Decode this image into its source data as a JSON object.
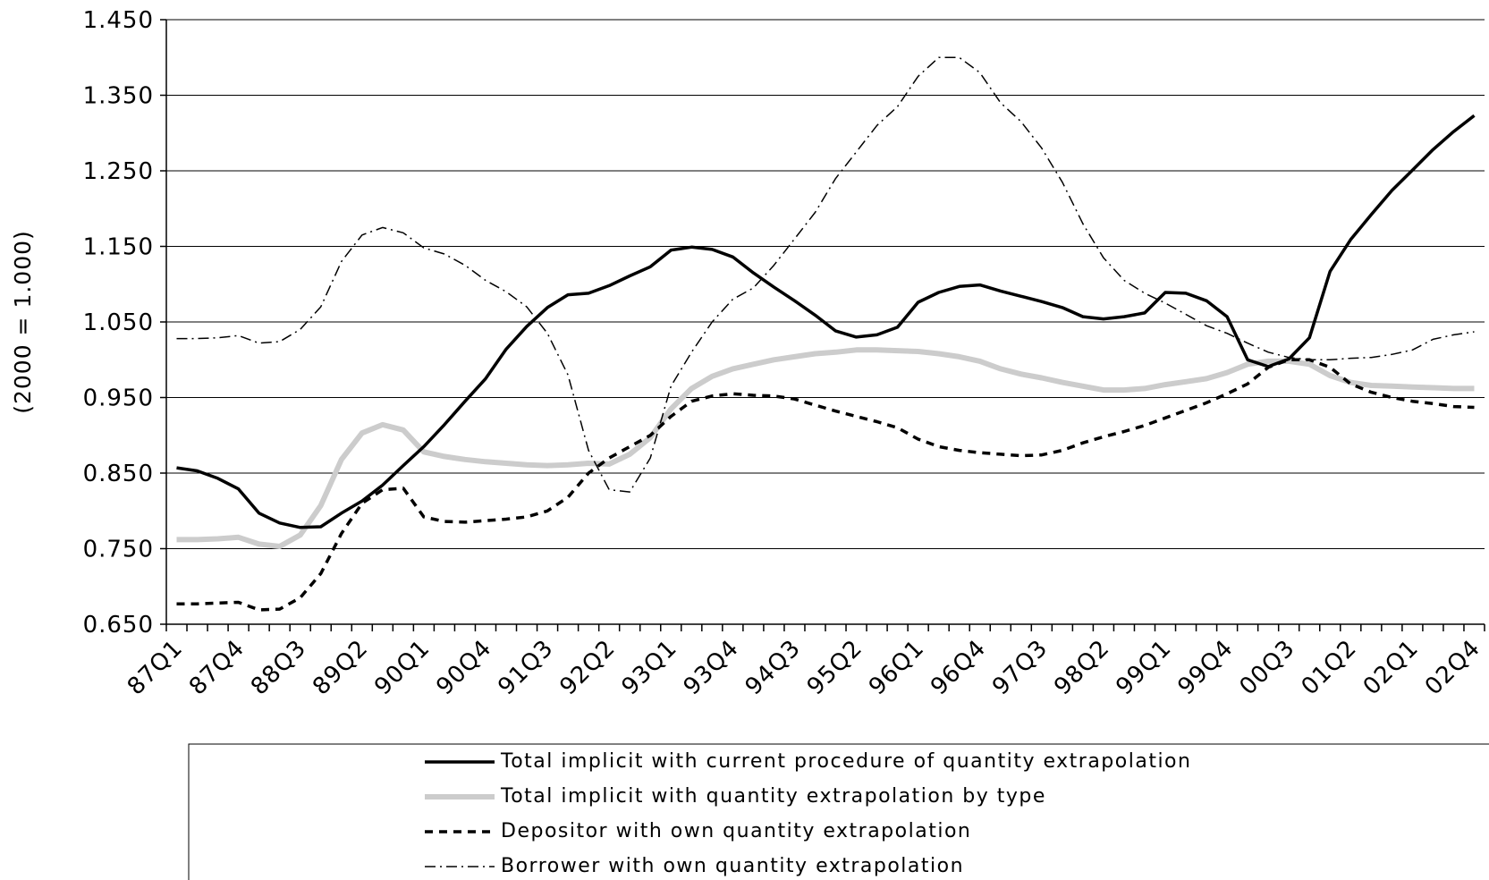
{
  "chart_data": {
    "type": "line",
    "y_label": "(2000 = 1.000)",
    "categories": [
      "87Q1",
      null,
      null,
      "87Q4",
      null,
      null,
      "88Q3",
      null,
      null,
      "89Q2",
      null,
      null,
      "90Q1",
      null,
      null,
      "90Q4",
      null,
      null,
      "91Q3",
      null,
      null,
      "92Q2",
      null,
      null,
      "93Q1",
      null,
      null,
      "93Q4",
      null,
      null,
      "94Q3",
      null,
      null,
      "95Q2",
      null,
      null,
      "96Q1",
      null,
      null,
      "96Q4",
      null,
      null,
      "97Q3",
      null,
      null,
      "98Q2",
      null,
      null,
      "99Q1",
      null,
      null,
      "99Q4",
      null,
      null,
      "00Q3",
      null,
      null,
      "01Q2",
      null,
      null,
      "02Q1",
      null,
      null,
      "02Q4"
    ],
    "series": [
      {
        "name": "Total implicit with current procedure of quantity extrapolation",
        "color": "#000000",
        "line_style": "solid",
        "values": [
          0.857,
          0.853,
          0.843,
          0.829,
          0.797,
          0.784,
          0.778,
          0.779,
          0.797,
          0.813,
          0.834,
          0.86,
          0.885,
          0.914,
          0.945,
          0.975,
          1.014,
          1.044,
          1.069,
          1.086,
          1.088,
          1.098,
          1.111,
          1.123,
          1.145,
          1.149,
          1.146,
          1.136,
          1.115,
          1.096,
          1.078,
          1.059,
          1.038,
          1.03,
          1.033,
          1.043,
          1.076,
          1.089,
          1.097,
          1.099,
          1.091,
          1.084,
          1.077,
          1.069,
          1.057,
          1.054,
          1.057,
          1.062,
          1.089,
          1.088,
          1.078,
          1.057,
          1.0,
          0.991,
          1.001,
          1.029,
          1.117,
          1.159,
          1.192,
          1.224,
          1.251,
          1.278,
          1.302,
          1.323
        ]
      },
      {
        "name": "Total implicit with quantity extrapolation by type",
        "color": "#cccccc",
        "line_style": "thick",
        "values": [
          0.762,
          0.762,
          0.763,
          0.765,
          0.756,
          0.753,
          0.768,
          0.807,
          0.868,
          0.903,
          0.914,
          0.907,
          0.878,
          0.872,
          0.868,
          0.865,
          0.863,
          0.861,
          0.86,
          0.861,
          0.863,
          0.862,
          0.875,
          0.897,
          0.935,
          0.962,
          0.978,
          0.988,
          0.994,
          1.0,
          1.004,
          1.008,
          1.01,
          1.013,
          1.013,
          1.012,
          1.011,
          1.008,
          1.004,
          0.998,
          0.988,
          0.981,
          0.976,
          0.97,
          0.965,
          0.96,
          0.96,
          0.962,
          0.967,
          0.971,
          0.975,
          0.983,
          0.994,
          0.998,
          0.998,
          0.994,
          0.979,
          0.97,
          0.966,
          0.965,
          0.964,
          0.963,
          0.962,
          0.962
        ]
      },
      {
        "name": "Depositor with own quantity extrapolation",
        "color": "#000000",
        "line_style": "dashed",
        "values": [
          0.677,
          0.677,
          0.678,
          0.679,
          0.669,
          0.67,
          0.685,
          0.717,
          0.77,
          0.81,
          0.828,
          0.83,
          0.792,
          0.786,
          0.785,
          0.787,
          0.789,
          0.792,
          0.8,
          0.818,
          0.85,
          0.87,
          0.885,
          0.9,
          0.925,
          0.945,
          0.952,
          0.955,
          0.953,
          0.952,
          0.948,
          0.94,
          0.932,
          0.925,
          0.918,
          0.91,
          0.895,
          0.885,
          0.88,
          0.877,
          0.875,
          0.873,
          0.874,
          0.88,
          0.89,
          0.898,
          0.905,
          0.913,
          0.923,
          0.933,
          0.943,
          0.955,
          0.968,
          0.99,
          1.0,
          1.0,
          0.99,
          0.968,
          0.957,
          0.95,
          0.945,
          0.942,
          0.938,
          0.937
        ]
      },
      {
        "name": "Borrower with own quantity extrapolation",
        "color": "#000000",
        "line_style": "dashdot",
        "values": [
          1.028,
          1.028,
          1.029,
          1.032,
          1.022,
          1.024,
          1.04,
          1.07,
          1.13,
          1.165,
          1.175,
          1.168,
          1.148,
          1.14,
          1.125,
          1.105,
          1.09,
          1.07,
          1.035,
          0.98,
          0.88,
          0.828,
          0.825,
          0.87,
          0.965,
          1.01,
          1.05,
          1.08,
          1.095,
          1.125,
          1.16,
          1.195,
          1.24,
          1.275,
          1.31,
          1.335,
          1.375,
          1.4,
          1.4,
          1.38,
          1.34,
          1.315,
          1.28,
          1.235,
          1.18,
          1.135,
          1.105,
          1.088,
          1.075,
          1.06,
          1.045,
          1.035,
          1.022,
          1.01,
          1.003,
          1.0,
          1.0,
          1.002,
          1.003,
          1.007,
          1.013,
          1.027,
          1.033,
          1.037
        ]
      }
    ],
    "ylim": [
      0.65,
      1.45
    ],
    "yticks": [
      {
        "value": 0.65,
        "label": "0.650"
      },
      {
        "value": 0.75,
        "label": "0.750"
      },
      {
        "value": 0.85,
        "label": "0.850"
      },
      {
        "value": 0.95,
        "label": "0.950"
      },
      {
        "value": 1.05,
        "label": "1.050"
      },
      {
        "value": 1.15,
        "label": "1.150"
      },
      {
        "value": 1.25,
        "label": "1.250"
      },
      {
        "value": 1.35,
        "label": "1.350"
      },
      {
        "value": 1.45,
        "label": "1.450"
      }
    ],
    "grid": true
  }
}
